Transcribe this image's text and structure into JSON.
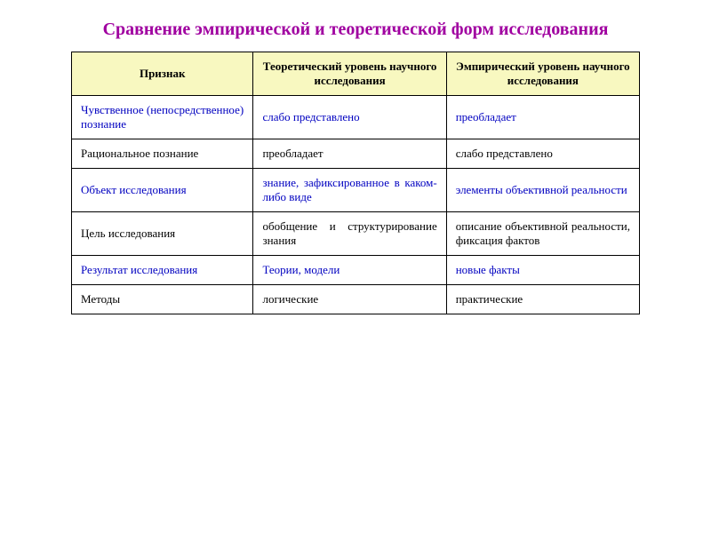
{
  "title": "Сравнение эмпирической и теоретической форм исследования",
  "colors": {
    "title": "#a000a0",
    "header_bg": "#f8f8c0",
    "border": "#000000",
    "text_blue": "#0000c0",
    "text_black": "#000000",
    "background": "#ffffff"
  },
  "fonts": {
    "family": "Times New Roman",
    "title_size_pt": 20,
    "cell_size_pt": 13
  },
  "table": {
    "type": "table",
    "column_widths_pct": [
      32,
      34,
      34
    ],
    "headers": {
      "c1": "Признак",
      "c2": "Теоретический уровень научного исследования",
      "c3": "Эмпирический уровень научного исследования"
    },
    "rows": [
      {
        "c1": "Чувственное (непосредственное) познание",
        "c2": "слабо представлено",
        "c3": "преобладает",
        "style": "blue"
      },
      {
        "c1": "Рациональное  познание",
        "c2": "преобладает",
        "c3": "слабо представлено",
        "style": "black"
      },
      {
        "c1": "Объект исследования",
        "c2": "знание, зафиксированное в каком-либо виде",
        "c3": "элементы объективной реальности",
        "style": "blue",
        "justify_c2": true,
        "justify_c3": true
      },
      {
        "c1": "Цель исследования",
        "c2": "обобщение и структурирование знания",
        "c3": "описание объективной реальности, фиксация фактов",
        "style": "black",
        "justify_c2": true,
        "justify_c3": true
      },
      {
        "c1": "Результат исследования",
        "c2": "Теории, модели",
        "c3": "новые факты",
        "style": "blue"
      },
      {
        "c1": "Методы",
        "c2": "логические",
        "c3": "практические",
        "style": "black"
      }
    ]
  }
}
